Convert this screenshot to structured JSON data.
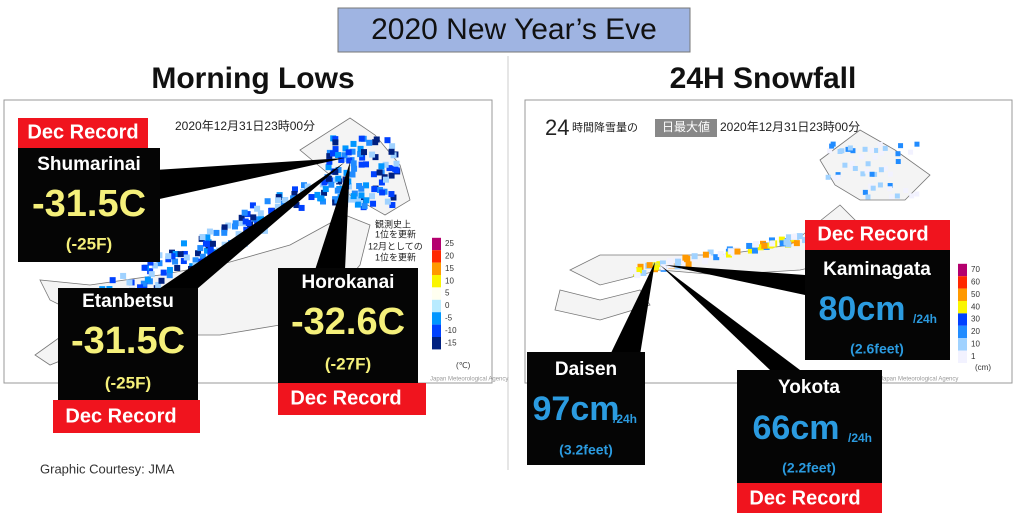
{
  "header": {
    "title": "2020 New Year’s Eve"
  },
  "left": {
    "title": "Morning Lows",
    "timestamp": "2020年12月31日23時00分",
    "notes": [
      {
        "line1": "観測史上",
        "line2": "1位を更新"
      },
      {
        "line1": "12月としての",
        "line2": "1位を更新"
      }
    ],
    "legend": {
      "labels": [
        25,
        20,
        15,
        10,
        5,
        0,
        -5,
        -10,
        -15
      ],
      "unit": "(℃)"
    },
    "copyright": "Japan Meteorological Agency",
    "callouts": [
      {
        "record": "Dec Record",
        "station": "Shumarinai",
        "value": "-31.5C",
        "alt": "(-25F)"
      },
      {
        "station": "Etanbetsu",
        "value": "-31.5C",
        "alt": "(-25F)",
        "record": "Dec Record"
      },
      {
        "station": "Horokanai",
        "value": "-32.6C",
        "alt": "(-27F)",
        "record": "Dec Record"
      }
    ]
  },
  "right": {
    "title": "24H Snowfall",
    "hours": "24",
    "caption": "時間降雪量の",
    "highlight": "日最大値",
    "timestamp": "2020年12月31日23時00分",
    "legend": {
      "labels": [
        70,
        60,
        50,
        40,
        30,
        20,
        10,
        1
      ],
      "unit": "(cm)"
    },
    "copyright": "(C) Japan Meteorological Agency",
    "callouts": [
      {
        "record": "Dec Record",
        "station": "Kaminagata",
        "value": "80cm",
        "per": "/24h",
        "alt": "(2.6feet)"
      },
      {
        "station": "Daisen",
        "value": "97cm",
        "per": "/24h",
        "alt": "(3.2feet)"
      },
      {
        "station": "Yokota",
        "value": "66cm",
        "per": "/24h",
        "alt": "(2.2feet)",
        "record": "Dec Record"
      }
    ]
  },
  "footer": {
    "credit": "Graphic Courtesy: JMA"
  }
}
